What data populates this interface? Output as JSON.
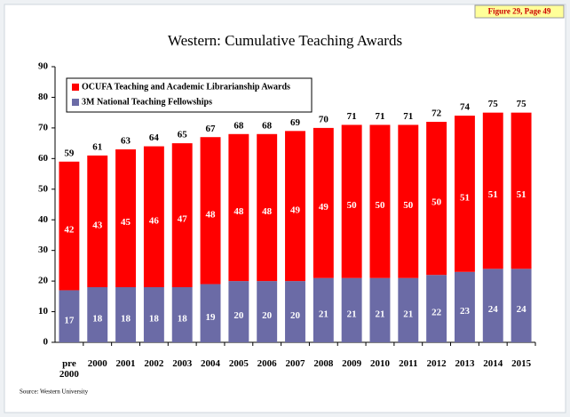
{
  "figure_label": "Figure 29, Page 49",
  "source": "Source:  Western University",
  "chart_data": {
    "type": "stacked-bar",
    "title": "Western: Cumulative Teaching Awards",
    "categories": [
      "pre 2000",
      "2000",
      "2001",
      "2002",
      "2003",
      "2004",
      "2005",
      "2006",
      "2007",
      "2008",
      "2009",
      "2010",
      "2011",
      "2012",
      "2013",
      "2014",
      "2015"
    ],
    "series": [
      {
        "name": "3M National Teaching Fellowships",
        "color": "#6b6ba6",
        "values": [
          17,
          18,
          18,
          18,
          18,
          19,
          20,
          20,
          20,
          21,
          21,
          21,
          21,
          22,
          23,
          24,
          24
        ]
      },
      {
        "name": "OCUFA Teaching and Academic Librarianship Awards",
        "color": "#ff0000",
        "values": [
          42,
          43,
          45,
          46,
          47,
          48,
          48,
          48,
          49,
          49,
          50,
          50,
          50,
          50,
          51,
          51,
          51
        ]
      }
    ],
    "totals": [
      59,
      61,
      63,
      64,
      65,
      67,
      68,
      68,
      69,
      70,
      71,
      71,
      71,
      72,
      74,
      75,
      75
    ],
    "ylim": [
      0,
      90
    ],
    "yticks": [
      0,
      10,
      20,
      30,
      40,
      50,
      60,
      70,
      80,
      90
    ],
    "grid": false,
    "legend": "top-left"
  }
}
